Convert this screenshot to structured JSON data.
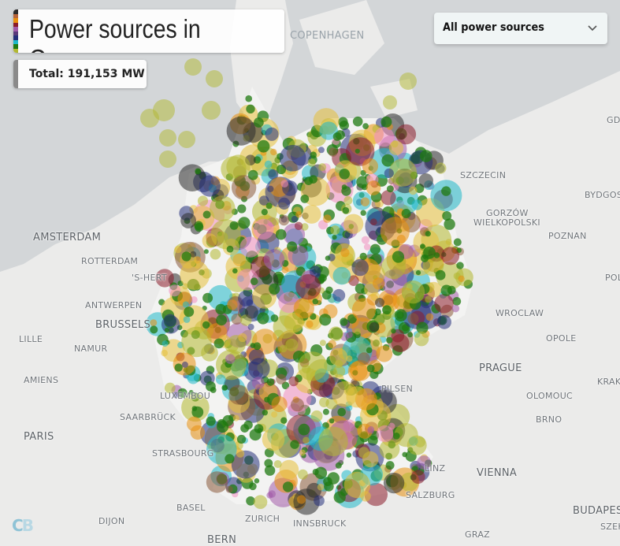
{
  "header": {
    "title": "Power sources in Germany",
    "total": "Total: 191,153 MW"
  },
  "filter": {
    "selected": "All power sources",
    "icon": "chevron-down-icon"
  },
  "legend_stripe_colors": [
    "#2b2b2b",
    "#b8653a",
    "#e8900f",
    "#8b1c2a",
    "#a15aa8",
    "#5a3a7a",
    "#24307a",
    "#1fb8c8",
    "#1f7a10",
    "#b2b830"
  ],
  "source_colors": {
    "wind": "#1f7a10",
    "solar": "#e6c03a",
    "biomass": "#b2b830",
    "coal": "#2b2b2b",
    "lignite": "#8b5a3a",
    "gas": "#e8900f",
    "hydro": "#1fb8c8",
    "nuclear": "#a15aa8",
    "oil": "#8b1c2a",
    "other": "#24307a",
    "waste": "#f08cc0"
  },
  "map_labels": {
    "copenhagen": "COPENHAGEN",
    "szczecin": "SZCZECIN",
    "bydgoszcz": "BYDGOS",
    "gorzow": "GORZÓW",
    "wielkopolski": "WIELKOPOLSKI",
    "poznan": "POZNAN",
    "amsterdam": "AMSTERDAM",
    "rotterdam": "ROTTERDAM",
    "shertogenbosch": "'S-HERT",
    "antwerpen": "ANTWERPEN",
    "brussels": "BRUSSELS",
    "lille": "LILLE",
    "namur": "NAMUR",
    "amiens": "AMIENS",
    "paris": "PARIS",
    "saarbrucken": "SAARBRÜCK",
    "strasbourg": "STRASBOURG",
    "basel": "BASEL",
    "zurich": "ZURICH",
    "bern": "BERN",
    "dijon": "DIJON",
    "innsbruck": "INNSBRUCK",
    "salzburg": "SALZBURG",
    "linz": "LINZ",
    "vienna": "VIENNA",
    "budapest": "BUDAPEST",
    "graz": "GRAZ",
    "prague": "PRAGUE",
    "pilsen": "PILSEN",
    "olomouc": "OLOMOUC",
    "brno": "BRNO",
    "wroclaw": "WROCLAW",
    "opole": "OPOLE",
    "gdansk": "GD",
    "pol": "POL",
    "krak": "KRAK",
    "szek": "SZEK",
    "luxembourg": "LUXEMBOU"
  },
  "logo": "CB"
}
